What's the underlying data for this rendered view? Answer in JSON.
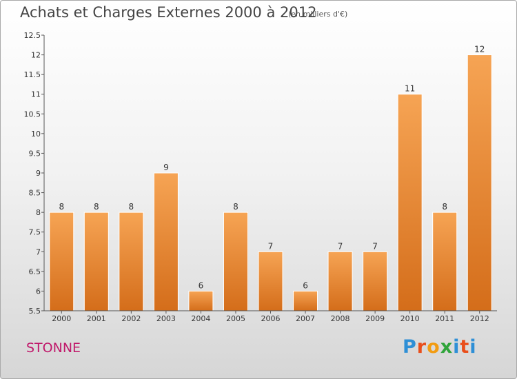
{
  "title": "Achats et Charges Externes 2000 à 2012",
  "unit": "(en milliers d'€)",
  "commune": "STONNE",
  "logo": {
    "p": "P",
    "r": "r",
    "o": "o",
    "x": "x",
    "i": "i",
    "t": "t",
    "i2": "i"
  },
  "colors": {
    "bar_top": "#f6a454",
    "bar_bottom": "#d46d1a",
    "bar_edge": "#ffffff",
    "axis": "#555555",
    "title": "#444444",
    "commune": "#c0196b"
  },
  "chart_data": {
    "type": "bar",
    "categories": [
      "2000",
      "2001",
      "2002",
      "2003",
      "2004",
      "2005",
      "2006",
      "2007",
      "2008",
      "2009",
      "2010",
      "2011",
      "2012"
    ],
    "values": [
      8,
      8,
      8,
      9,
      6,
      8,
      7,
      6,
      7,
      7,
      11,
      8,
      12
    ],
    "data_labels": [
      "8",
      "8",
      "8",
      "9",
      "6",
      "8",
      "7",
      "6",
      "7",
      "7",
      "11",
      "8",
      "12"
    ],
    "ylim": [
      5.5,
      12.5
    ],
    "yticks": [
      "5.5",
      "6",
      "6.5",
      "7",
      "7.5",
      "8",
      "8.5",
      "9",
      "9.5",
      "10",
      "10.5",
      "11",
      "11.5",
      "12",
      "12.5"
    ],
    "grid": false,
    "legend": "none",
    "xlabel": "",
    "ylabel": ""
  }
}
